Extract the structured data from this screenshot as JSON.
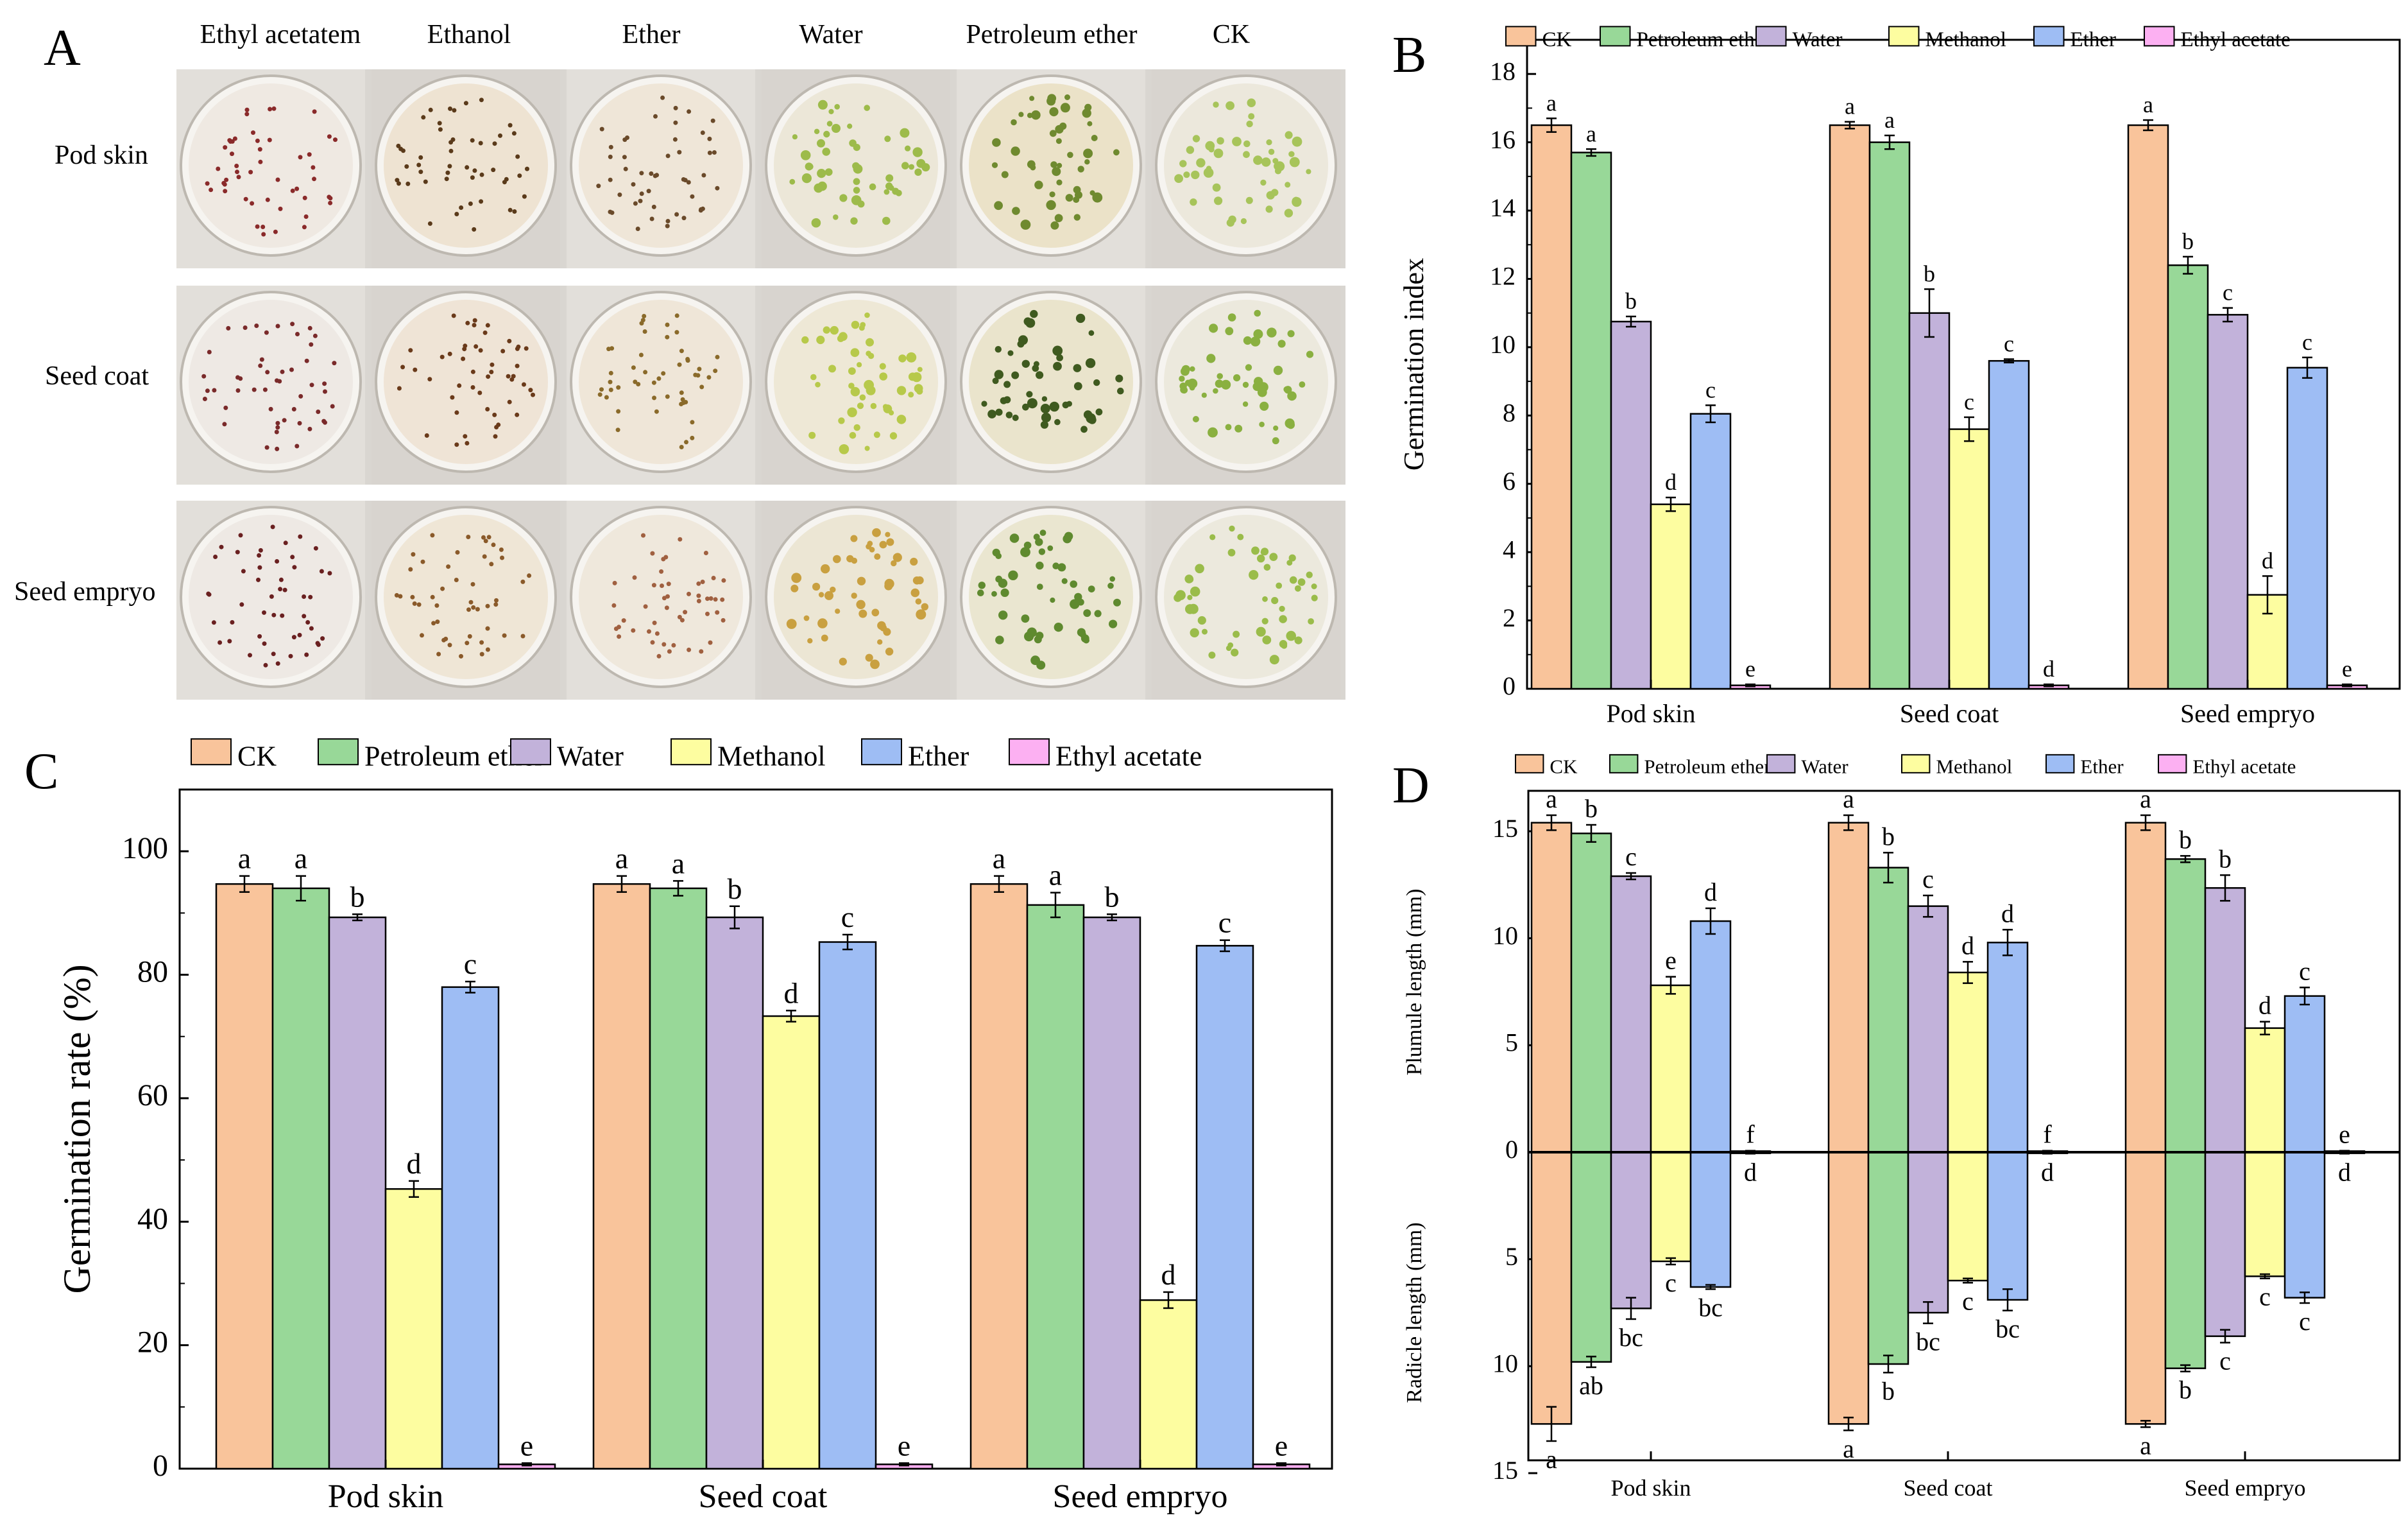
{
  "panel_a": {
    "letter": "A",
    "columns": [
      "Ethyl acetatem",
      "Ethanol",
      "Ether",
      "Water",
      "Petroleum ether",
      "CK"
    ],
    "rows": [
      "Pod skin",
      "Seed coat",
      "Seed empryo"
    ]
  },
  "colors": {
    "CK": "#f9c49b",
    "Petroleum ether": "#98d898",
    "Water": "#c2b2da",
    "Methanol": "#fdfda0",
    "Ether": "#9ebdf4",
    "Ethyl acetate": "#fcb0f2"
  },
  "chart_data": [
    {
      "panel": "B",
      "type": "bar",
      "ylabel": "Germination index",
      "xlabel": "",
      "ylim": [
        0,
        19
      ],
      "yticks": [
        0,
        2,
        4,
        6,
        8,
        10,
        12,
        14,
        16,
        18
      ],
      "legend_position": "top",
      "categories": [
        "Pod skin",
        "Seed coat",
        "Seed empryo"
      ],
      "series": [
        {
          "name": "CK",
          "values": [
            16.5,
            16.5,
            16.5
          ],
          "errors": [
            0.2,
            0.1,
            0.15
          ],
          "letters": [
            "a",
            "a",
            "a"
          ]
        },
        {
          "name": "Petroleum ether",
          "values": [
            15.7,
            16.0,
            12.4
          ],
          "errors": [
            0.1,
            0.2,
            0.25
          ],
          "letters": [
            "a",
            "a",
            "b"
          ]
        },
        {
          "name": "Water",
          "values": [
            10.75,
            11.0,
            10.95
          ],
          "errors": [
            0.15,
            0.7,
            0.2
          ],
          "letters": [
            "b",
            "b",
            "c"
          ]
        },
        {
          "name": "Methanol",
          "values": [
            5.4,
            7.6,
            2.75
          ],
          "errors": [
            0.2,
            0.35,
            0.55
          ],
          "letters": [
            "d",
            "c",
            "d"
          ]
        },
        {
          "name": "Ether",
          "values": [
            8.05,
            9.6,
            9.4
          ],
          "errors": [
            0.25,
            0.05,
            0.3
          ],
          "letters": [
            "c",
            "c",
            "c"
          ]
        },
        {
          "name": "Ethyl acetate",
          "values": [
            0.1,
            0.1,
            0.1
          ],
          "errors": [
            0.03,
            0.03,
            0.03
          ],
          "letters": [
            "e",
            "d",
            "e"
          ]
        }
      ]
    },
    {
      "panel": "C",
      "type": "bar",
      "ylabel": "Germination rate (%)",
      "xlabel": "",
      "ylim": [
        0,
        110
      ],
      "yticks": [
        0,
        20,
        40,
        60,
        80,
        100
      ],
      "legend_position": "top",
      "categories": [
        "Pod skin",
        "Seed coat",
        "Seed empryo"
      ],
      "series": [
        {
          "name": "CK",
          "values": [
            94.7,
            94.7,
            94.7
          ],
          "errors": [
            1.3,
            1.3,
            1.3
          ],
          "letters": [
            "a",
            "a",
            "a"
          ]
        },
        {
          "name": "Petroleum ether",
          "values": [
            94.0,
            94.0,
            91.3
          ],
          "errors": [
            2.0,
            1.2,
            2.0
          ],
          "letters": [
            "a",
            "a",
            "a"
          ]
        },
        {
          "name": "Water",
          "values": [
            89.3,
            89.3,
            89.3
          ],
          "errors": [
            0.5,
            1.8,
            0.5
          ],
          "letters": [
            "b",
            "b",
            "b"
          ]
        },
        {
          "name": "Methanol",
          "values": [
            45.3,
            73.3,
            27.3
          ],
          "errors": [
            1.3,
            0.9,
            1.3
          ],
          "letters": [
            "d",
            "d",
            "d"
          ]
        },
        {
          "name": "Ether",
          "values": [
            78.0,
            85.3,
            84.7
          ],
          "errors": [
            0.9,
            1.2,
            0.9
          ],
          "letters": [
            "c",
            "c",
            "c"
          ]
        },
        {
          "name": "Ethyl acetate",
          "values": [
            0.7,
            0.7,
            0.7
          ],
          "errors": [
            0.2,
            0.2,
            0.2
          ],
          "letters": [
            "e",
            "e",
            "e"
          ]
        }
      ]
    },
    {
      "panel": "D",
      "type": "bar",
      "ylabel_top": "Plumule length (mm)",
      "ylabel_bottom": "Radicle length (mm)",
      "xlabel": "",
      "ylim": [
        -15,
        17
      ],
      "yticks": [
        15,
        10,
        5,
        0,
        5,
        10,
        15
      ],
      "legend_position": "top",
      "categories": [
        "Pod skin",
        "Seed coat",
        "Seed empryo"
      ],
      "series": [
        {
          "name": "CK",
          "plumule": [
            15.4,
            15.4,
            15.4
          ],
          "plumule_err": [
            0.35,
            0.35,
            0.35
          ],
          "plumule_letters": [
            "a",
            "a",
            "a"
          ],
          "radicle": [
            12.7,
            12.7,
            12.7
          ],
          "radicle_err": [
            0.8,
            0.3,
            0.15
          ],
          "radicle_letters": [
            "a",
            "a",
            "a"
          ]
        },
        {
          "name": "Petroleum ether",
          "plumule": [
            14.9,
            13.3,
            13.7
          ],
          "plumule_err": [
            0.4,
            0.7,
            0.15
          ],
          "plumule_letters": [
            "b",
            "b",
            "b"
          ],
          "radicle": [
            9.8,
            9.9,
            10.1
          ],
          "radicle_err": [
            0.25,
            0.4,
            0.15
          ],
          "radicle_letters": [
            "ab",
            "b",
            "b"
          ]
        },
        {
          "name": "Water",
          "plumule": [
            12.9,
            11.5,
            12.35
          ],
          "plumule_err": [
            0.15,
            0.5,
            0.6
          ],
          "plumule_letters": [
            "c",
            "c",
            "b"
          ],
          "radicle": [
            7.3,
            7.5,
            8.6
          ],
          "radicle_err": [
            0.5,
            0.5,
            0.3
          ],
          "radicle_letters": [
            "bc",
            "bc",
            "c"
          ]
        },
        {
          "name": "Methanol",
          "plumule": [
            7.8,
            8.4,
            5.8
          ],
          "plumule_err": [
            0.4,
            0.5,
            0.3
          ],
          "plumule_letters": [
            "e",
            "d",
            "d"
          ],
          "radicle": [
            5.1,
            6.0,
            5.8
          ],
          "radicle_err": [
            0.15,
            0.1,
            0.1
          ],
          "radicle_letters": [
            "c",
            "c",
            "c"
          ]
        },
        {
          "name": "Ether",
          "plumule": [
            10.8,
            9.8,
            7.3
          ],
          "plumule_err": [
            0.6,
            0.6,
            0.4
          ],
          "plumule_letters": [
            "d",
            "d",
            "c"
          ],
          "radicle": [
            6.3,
            6.9,
            6.8
          ],
          "radicle_err": [
            0.1,
            0.5,
            0.25
          ],
          "radicle_letters": [
            "bc",
            "bc",
            "c"
          ]
        },
        {
          "name": "Ethyl acetate",
          "plumule": [
            0.05,
            0.05,
            0.05
          ],
          "plumule_err": [
            0.02,
            0.02,
            0.02
          ],
          "plumule_letters": [
            "f",
            "f",
            "e"
          ],
          "radicle": [
            0.05,
            0.05,
            0.05
          ],
          "radicle_err": [
            0.02,
            0.02,
            0.02
          ],
          "radicle_letters": [
            "d",
            "d",
            "d"
          ]
        }
      ]
    }
  ]
}
